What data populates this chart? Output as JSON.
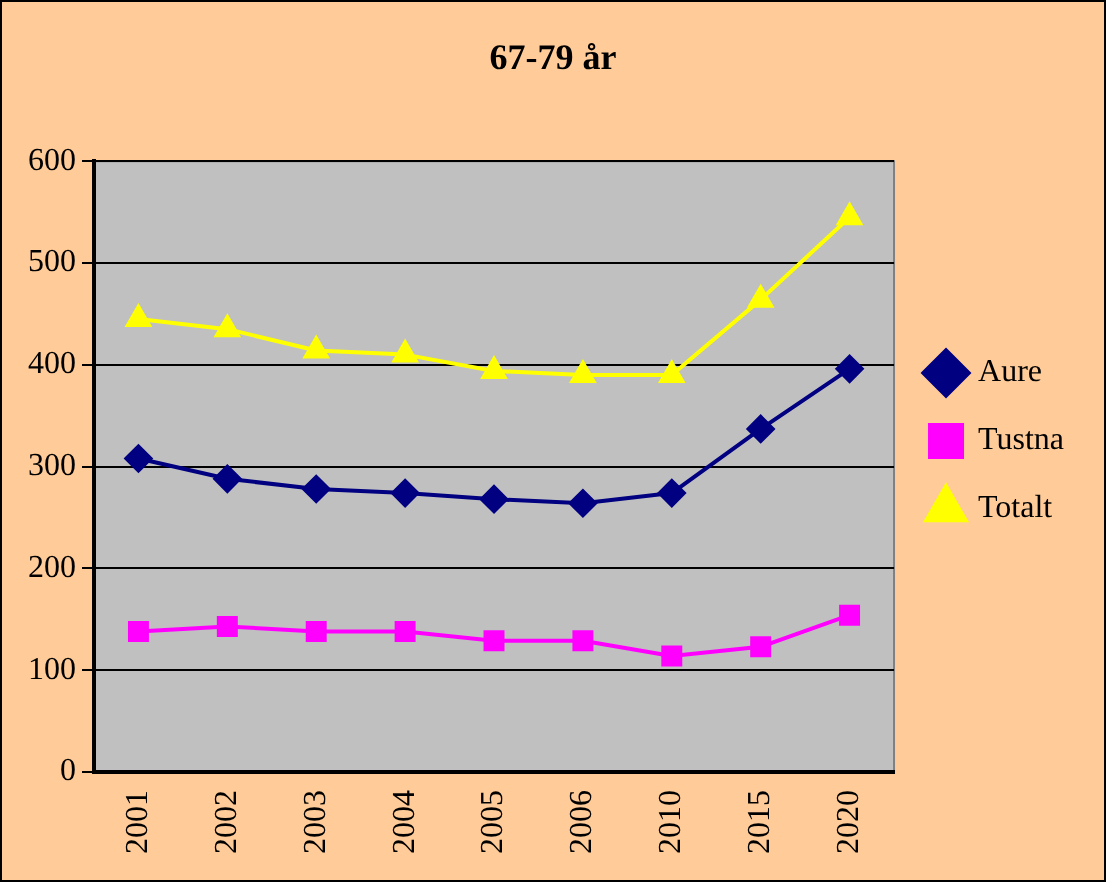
{
  "chart_data": {
    "type": "line",
    "title": "67-79 år",
    "categories": [
      "2001",
      "2002",
      "2003",
      "2004",
      "2005",
      "2006",
      "2010",
      "2015",
      "2020"
    ],
    "series": [
      {
        "name": "Aure",
        "color": "#000080",
        "marker": "diamond",
        "values": [
          308,
          288,
          278,
          274,
          268,
          264,
          274,
          337,
          396
        ]
      },
      {
        "name": "Tustna",
        "color": "#ff00ff",
        "marker": "square",
        "values": [
          138,
          143,
          138,
          138,
          129,
          129,
          114,
          123,
          154
        ]
      },
      {
        "name": "Totalt",
        "color": "#ffff00",
        "marker": "triangle",
        "values": [
          445,
          435,
          414,
          410,
          394,
          390,
          390,
          464,
          545
        ]
      }
    ],
    "ylim": [
      0,
      600
    ],
    "yticks": [
      0,
      100,
      200,
      300,
      400,
      500,
      600
    ],
    "grid": "y",
    "legend": "right"
  }
}
